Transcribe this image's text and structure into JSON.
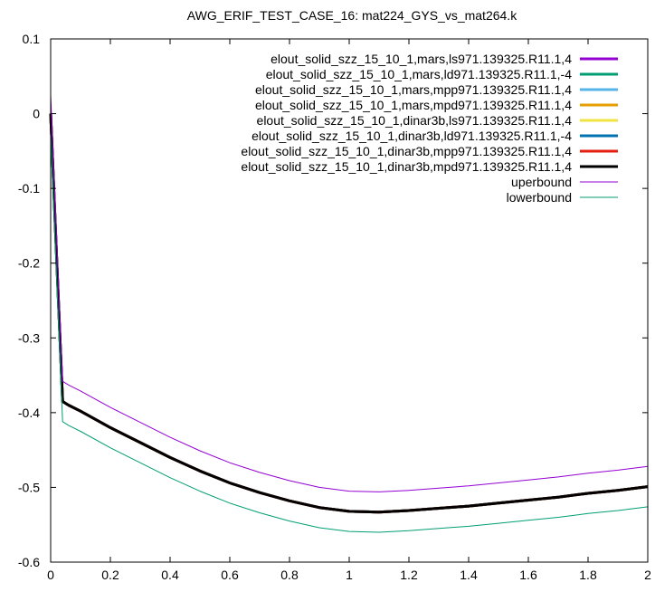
{
  "chart_data": {
    "type": "line",
    "title": "AWG_ERIF_TEST_CASE_16: mat224_GYS_vs_mat264.k",
    "xlabel": "",
    "ylabel": "",
    "xlim": [
      0,
      2
    ],
    "ylim": [
      -0.6,
      0.1
    ],
    "x_ticks": [
      "0",
      "0.2",
      "0.4",
      "0.6",
      "0.8",
      "1",
      "1.2",
      "1.4",
      "1.6",
      "1.8",
      "2"
    ],
    "y_ticks": [
      "0.1",
      "0",
      "-0.1",
      "-0.2",
      "-0.3",
      "-0.4",
      "-0.5",
      "-0.6"
    ],
    "grid": false,
    "legend_position": "top-right",
    "series": [
      {
        "name": "elout_solid_szz_15_10_1,mars,ls971.139325.R11.1,4",
        "color": "#9400d3",
        "width": 3,
        "x": [
          0,
          0.04,
          0.06,
          0.1,
          0.2,
          0.3,
          0.4,
          0.5,
          0.6,
          0.7,
          0.8,
          0.9,
          1.0,
          1.1,
          1.2,
          1.3,
          1.4,
          1.5,
          1.6,
          1.7,
          1.8,
          1.9,
          2.0
        ],
        "y": [
          0,
          -0.385,
          -0.39,
          -0.398,
          -0.42,
          -0.44,
          -0.46,
          -0.478,
          -0.494,
          -0.507,
          -0.518,
          -0.527,
          -0.532,
          -0.533,
          -0.531,
          -0.528,
          -0.525,
          -0.521,
          -0.517,
          -0.513,
          -0.508,
          -0.504,
          -0.499
        ]
      },
      {
        "name": "elout_solid_szz_15_10_1,mars,ld971.139325.R11.1,-4",
        "color": "#009e73",
        "width": 3,
        "x": [
          0,
          0.04,
          0.06,
          0.1,
          0.2,
          0.3,
          0.4,
          0.5,
          0.6,
          0.7,
          0.8,
          0.9,
          1.0,
          1.1,
          1.2,
          1.3,
          1.4,
          1.5,
          1.6,
          1.7,
          1.8,
          1.9,
          2.0
        ],
        "y": [
          0,
          -0.385,
          -0.39,
          -0.398,
          -0.42,
          -0.44,
          -0.46,
          -0.478,
          -0.494,
          -0.507,
          -0.518,
          -0.527,
          -0.532,
          -0.533,
          -0.531,
          -0.528,
          -0.525,
          -0.521,
          -0.517,
          -0.513,
          -0.508,
          -0.504,
          -0.499
        ]
      },
      {
        "name": "elout_solid_szz_15_10_1,mars,mpp971.139325.R11.1,4",
        "color": "#56b4e9",
        "width": 3,
        "x": [
          0,
          0.04,
          0.06,
          0.1,
          0.2,
          0.3,
          0.4,
          0.5,
          0.6,
          0.7,
          0.8,
          0.9,
          1.0,
          1.1,
          1.2,
          1.3,
          1.4,
          1.5,
          1.6,
          1.7,
          1.8,
          1.9,
          2.0
        ],
        "y": [
          0,
          -0.385,
          -0.39,
          -0.398,
          -0.42,
          -0.44,
          -0.46,
          -0.478,
          -0.494,
          -0.507,
          -0.518,
          -0.527,
          -0.532,
          -0.533,
          -0.531,
          -0.528,
          -0.525,
          -0.521,
          -0.517,
          -0.513,
          -0.508,
          -0.504,
          -0.499
        ]
      },
      {
        "name": "elout_solid_szz_15_10_1,mars,mpd971.139325.R11.1,4",
        "color": "#e69f00",
        "width": 3,
        "x": [
          0,
          0.04,
          0.06,
          0.1,
          0.2,
          0.3,
          0.4,
          0.5,
          0.6,
          0.7,
          0.8,
          0.9,
          1.0,
          1.1,
          1.2,
          1.3,
          1.4,
          1.5,
          1.6,
          1.7,
          1.8,
          1.9,
          2.0
        ],
        "y": [
          0,
          -0.385,
          -0.39,
          -0.398,
          -0.42,
          -0.44,
          -0.46,
          -0.478,
          -0.494,
          -0.507,
          -0.518,
          -0.527,
          -0.532,
          -0.533,
          -0.531,
          -0.528,
          -0.525,
          -0.521,
          -0.517,
          -0.513,
          -0.508,
          -0.504,
          -0.499
        ]
      },
      {
        "name": "elout_solid_szz_15_10_1,dinar3b,ls971.139325.R11.1,4",
        "color": "#f0e442",
        "width": 3,
        "x": [
          0,
          0.04,
          0.06,
          0.1,
          0.2,
          0.3,
          0.4,
          0.5,
          0.6,
          0.7,
          0.8,
          0.9,
          1.0,
          1.1,
          1.2,
          1.3,
          1.4,
          1.5,
          1.6,
          1.7,
          1.8,
          1.9,
          2.0
        ],
        "y": [
          0,
          -0.385,
          -0.39,
          -0.398,
          -0.42,
          -0.44,
          -0.46,
          -0.478,
          -0.494,
          -0.507,
          -0.518,
          -0.527,
          -0.532,
          -0.533,
          -0.531,
          -0.528,
          -0.525,
          -0.521,
          -0.517,
          -0.513,
          -0.508,
          -0.504,
          -0.499
        ]
      },
      {
        "name": "elout_solid_szz_15_10_1,dinar3b,ld971.139325.R11.1,-4",
        "color": "#0072b2",
        "width": 3,
        "x": [
          0,
          0.04,
          0.06,
          0.1,
          0.2,
          0.3,
          0.4,
          0.5,
          0.6,
          0.7,
          0.8,
          0.9,
          1.0,
          1.1,
          1.2,
          1.3,
          1.4,
          1.5,
          1.6,
          1.7,
          1.8,
          1.9,
          2.0
        ],
        "y": [
          0,
          -0.385,
          -0.39,
          -0.398,
          -0.42,
          -0.44,
          -0.46,
          -0.478,
          -0.494,
          -0.507,
          -0.518,
          -0.527,
          -0.532,
          -0.533,
          -0.531,
          -0.528,
          -0.525,
          -0.521,
          -0.517,
          -0.513,
          -0.508,
          -0.504,
          -0.499
        ]
      },
      {
        "name": "elout_solid_szz_15_10_1,dinar3b,mpp971.139325.R11.1,4",
        "color": "#e51e10",
        "width": 3,
        "x": [
          0,
          0.04,
          0.06,
          0.1,
          0.2,
          0.3,
          0.4,
          0.5,
          0.6,
          0.7,
          0.8,
          0.9,
          1.0,
          1.1,
          1.2,
          1.3,
          1.4,
          1.5,
          1.6,
          1.7,
          1.8,
          1.9,
          2.0
        ],
        "y": [
          0,
          -0.385,
          -0.39,
          -0.398,
          -0.42,
          -0.44,
          -0.46,
          -0.478,
          -0.494,
          -0.507,
          -0.518,
          -0.527,
          -0.532,
          -0.533,
          -0.531,
          -0.528,
          -0.525,
          -0.521,
          -0.517,
          -0.513,
          -0.508,
          -0.504,
          -0.499
        ]
      },
      {
        "name": "elout_solid_szz_15_10_1,dinar3b,mpd971.139325.R11.1,4",
        "color": "#000000",
        "width": 3,
        "x": [
          0,
          0.04,
          0.06,
          0.1,
          0.2,
          0.3,
          0.4,
          0.5,
          0.6,
          0.7,
          0.8,
          0.9,
          1.0,
          1.1,
          1.2,
          1.3,
          1.4,
          1.5,
          1.6,
          1.7,
          1.8,
          1.9,
          2.0
        ],
        "y": [
          0,
          -0.385,
          -0.39,
          -0.398,
          -0.42,
          -0.44,
          -0.46,
          -0.478,
          -0.494,
          -0.507,
          -0.518,
          -0.527,
          -0.532,
          -0.533,
          -0.531,
          -0.528,
          -0.525,
          -0.521,
          -0.517,
          -0.513,
          -0.508,
          -0.504,
          -0.499
        ]
      },
      {
        "name": "uperbound",
        "color": "#9400d3",
        "width": 1,
        "x": [
          0,
          0.04,
          0.06,
          0.1,
          0.2,
          0.3,
          0.4,
          0.5,
          0.6,
          0.7,
          0.8,
          0.9,
          1.0,
          1.1,
          1.2,
          1.3,
          1.4,
          1.5,
          1.6,
          1.7,
          1.8,
          1.9,
          2.0
        ],
        "y": [
          0.025,
          -0.358,
          -0.363,
          -0.371,
          -0.393,
          -0.413,
          -0.433,
          -0.451,
          -0.467,
          -0.48,
          -0.491,
          -0.5,
          -0.505,
          -0.506,
          -0.504,
          -0.501,
          -0.498,
          -0.494,
          -0.49,
          -0.486,
          -0.481,
          -0.477,
          -0.472
        ]
      },
      {
        "name": "lowerbound",
        "color": "#009e73",
        "width": 1,
        "x": [
          0,
          0.04,
          0.06,
          0.1,
          0.2,
          0.3,
          0.4,
          0.5,
          0.6,
          0.7,
          0.8,
          0.9,
          1.0,
          1.1,
          1.2,
          1.3,
          1.4,
          1.5,
          1.6,
          1.7,
          1.8,
          1.9,
          2.0
        ],
        "y": [
          -0.025,
          -0.412,
          -0.417,
          -0.425,
          -0.447,
          -0.467,
          -0.487,
          -0.505,
          -0.521,
          -0.534,
          -0.545,
          -0.554,
          -0.559,
          -0.56,
          -0.558,
          -0.555,
          -0.552,
          -0.548,
          -0.544,
          -0.54,
          -0.535,
          -0.531,
          -0.526
        ]
      }
    ]
  }
}
